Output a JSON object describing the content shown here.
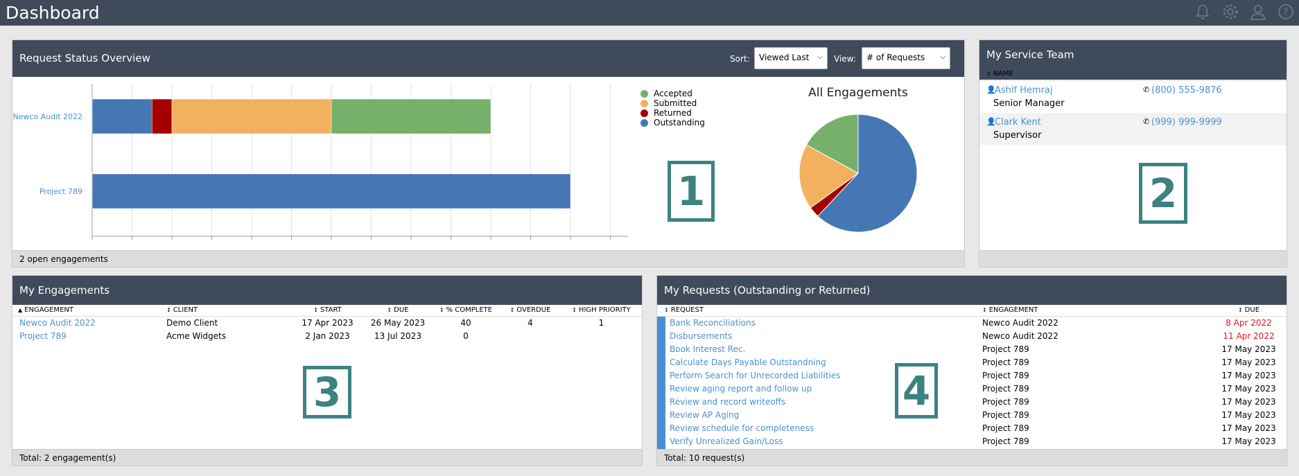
{
  "app": {
    "title": "Dashboard"
  },
  "topbar_icons": [
    "bell-icon",
    "gear-icon",
    "user-icon",
    "help-icon"
  ],
  "request_status": {
    "title": "Request Status Overview",
    "sort_label": "Sort:",
    "sort_value": "Viewed Last",
    "view_label": "View:",
    "view_value": "# of Requests",
    "footer": "2 open engagements",
    "callout": "1"
  },
  "chart_data": [
    {
      "type": "bar",
      "orientation": "horizontal",
      "stacked": true,
      "categories": [
        "Newco Audit 2022",
        "Project 789"
      ],
      "series": [
        {
          "name": "Outstanding",
          "color": "#4677b5",
          "values": [
            1.5,
            12
          ]
        },
        {
          "name": "Returned",
          "color": "#a30000",
          "values": [
            0.5,
            0
          ]
        },
        {
          "name": "Submitted",
          "color": "#f3b160",
          "values": [
            4,
            0
          ]
        },
        {
          "name": "Accepted",
          "color": "#76b06a",
          "values": [
            4,
            0
          ]
        }
      ],
      "xlim": [
        0,
        13
      ],
      "grid": true,
      "legend": "right"
    },
    {
      "type": "pie",
      "title": "All Engagements",
      "slices": [
        {
          "name": "Outstanding",
          "color": "#4677b5",
          "value": 62
        },
        {
          "name": "Returned",
          "color": "#a30000",
          "value": 3
        },
        {
          "name": "Submitted",
          "color": "#f3b160",
          "value": 18
        },
        {
          "name": "Accepted",
          "color": "#76b06a",
          "value": 17
        }
      ]
    }
  ],
  "legend": [
    "Accepted",
    "Submitted",
    "Returned",
    "Outstanding"
  ],
  "service_team": {
    "title": "My Service Team",
    "col_name": "NAME",
    "members": [
      {
        "name": "Ashif Hemraj",
        "role": "Senior Manager",
        "phone": "(800) 555-9876"
      },
      {
        "name": "Clark Kent",
        "role": "Supervisor",
        "phone": "(999) 999-9999"
      }
    ],
    "callout": "2"
  },
  "engagements": {
    "title": "My Engagements",
    "columns": [
      "ENGAGEMENT",
      "CLIENT",
      "START",
      "DUE",
      "% COMPLETE",
      "OVERDUE",
      "HIGH PRIORITY"
    ],
    "rows": [
      [
        "Newco Audit 2022",
        "Demo Client",
        "17 Apr 2023",
        "26 May 2023",
        "40",
        "4",
        "1"
      ],
      [
        "Project 789",
        "Acme Widgets",
        "2 Jan 2023",
        "13 Jul 2023",
        "0",
        "",
        ""
      ]
    ],
    "footer": "Total: 2 engagement(s)",
    "callout": "3"
  },
  "requests": {
    "title": "My Requests (Outstanding or Returned)",
    "columns": [
      "REQUEST",
      "ENGAGEMENT",
      "DUE"
    ],
    "rows": [
      [
        "Bank Reconciliations",
        "Newco Audit 2022",
        "8 Apr 2022"
      ],
      [
        "Disbursements",
        "Newco Audit 2022",
        "11 Apr 2022"
      ],
      [
        "Book Interest Rec.",
        "Project 789",
        "17 May 2023"
      ],
      [
        "Calculate Days Payable Outstandning",
        "Project 789",
        "17 May 2023"
      ],
      [
        "Perform Search for Unrecorded Liabilities",
        "Project 789",
        "17 May 2023"
      ],
      [
        "Review aging report and follow up",
        "Project 789",
        "17 May 2023"
      ],
      [
        "Review and record writeoffs",
        "Project 789",
        "17 May 2023"
      ],
      [
        "Review AP Aging",
        "Project 789",
        "17 May 2023"
      ],
      [
        "Review schedule for completeness",
        "Project 789",
        "17 May 2023"
      ],
      [
        "Verify Unrealized Gain/Loss",
        "Project 789",
        "17 May 2023"
      ]
    ],
    "overdue_rows": [
      0,
      1
    ],
    "footer": "Total: 10 request(s)",
    "callout": "4"
  }
}
